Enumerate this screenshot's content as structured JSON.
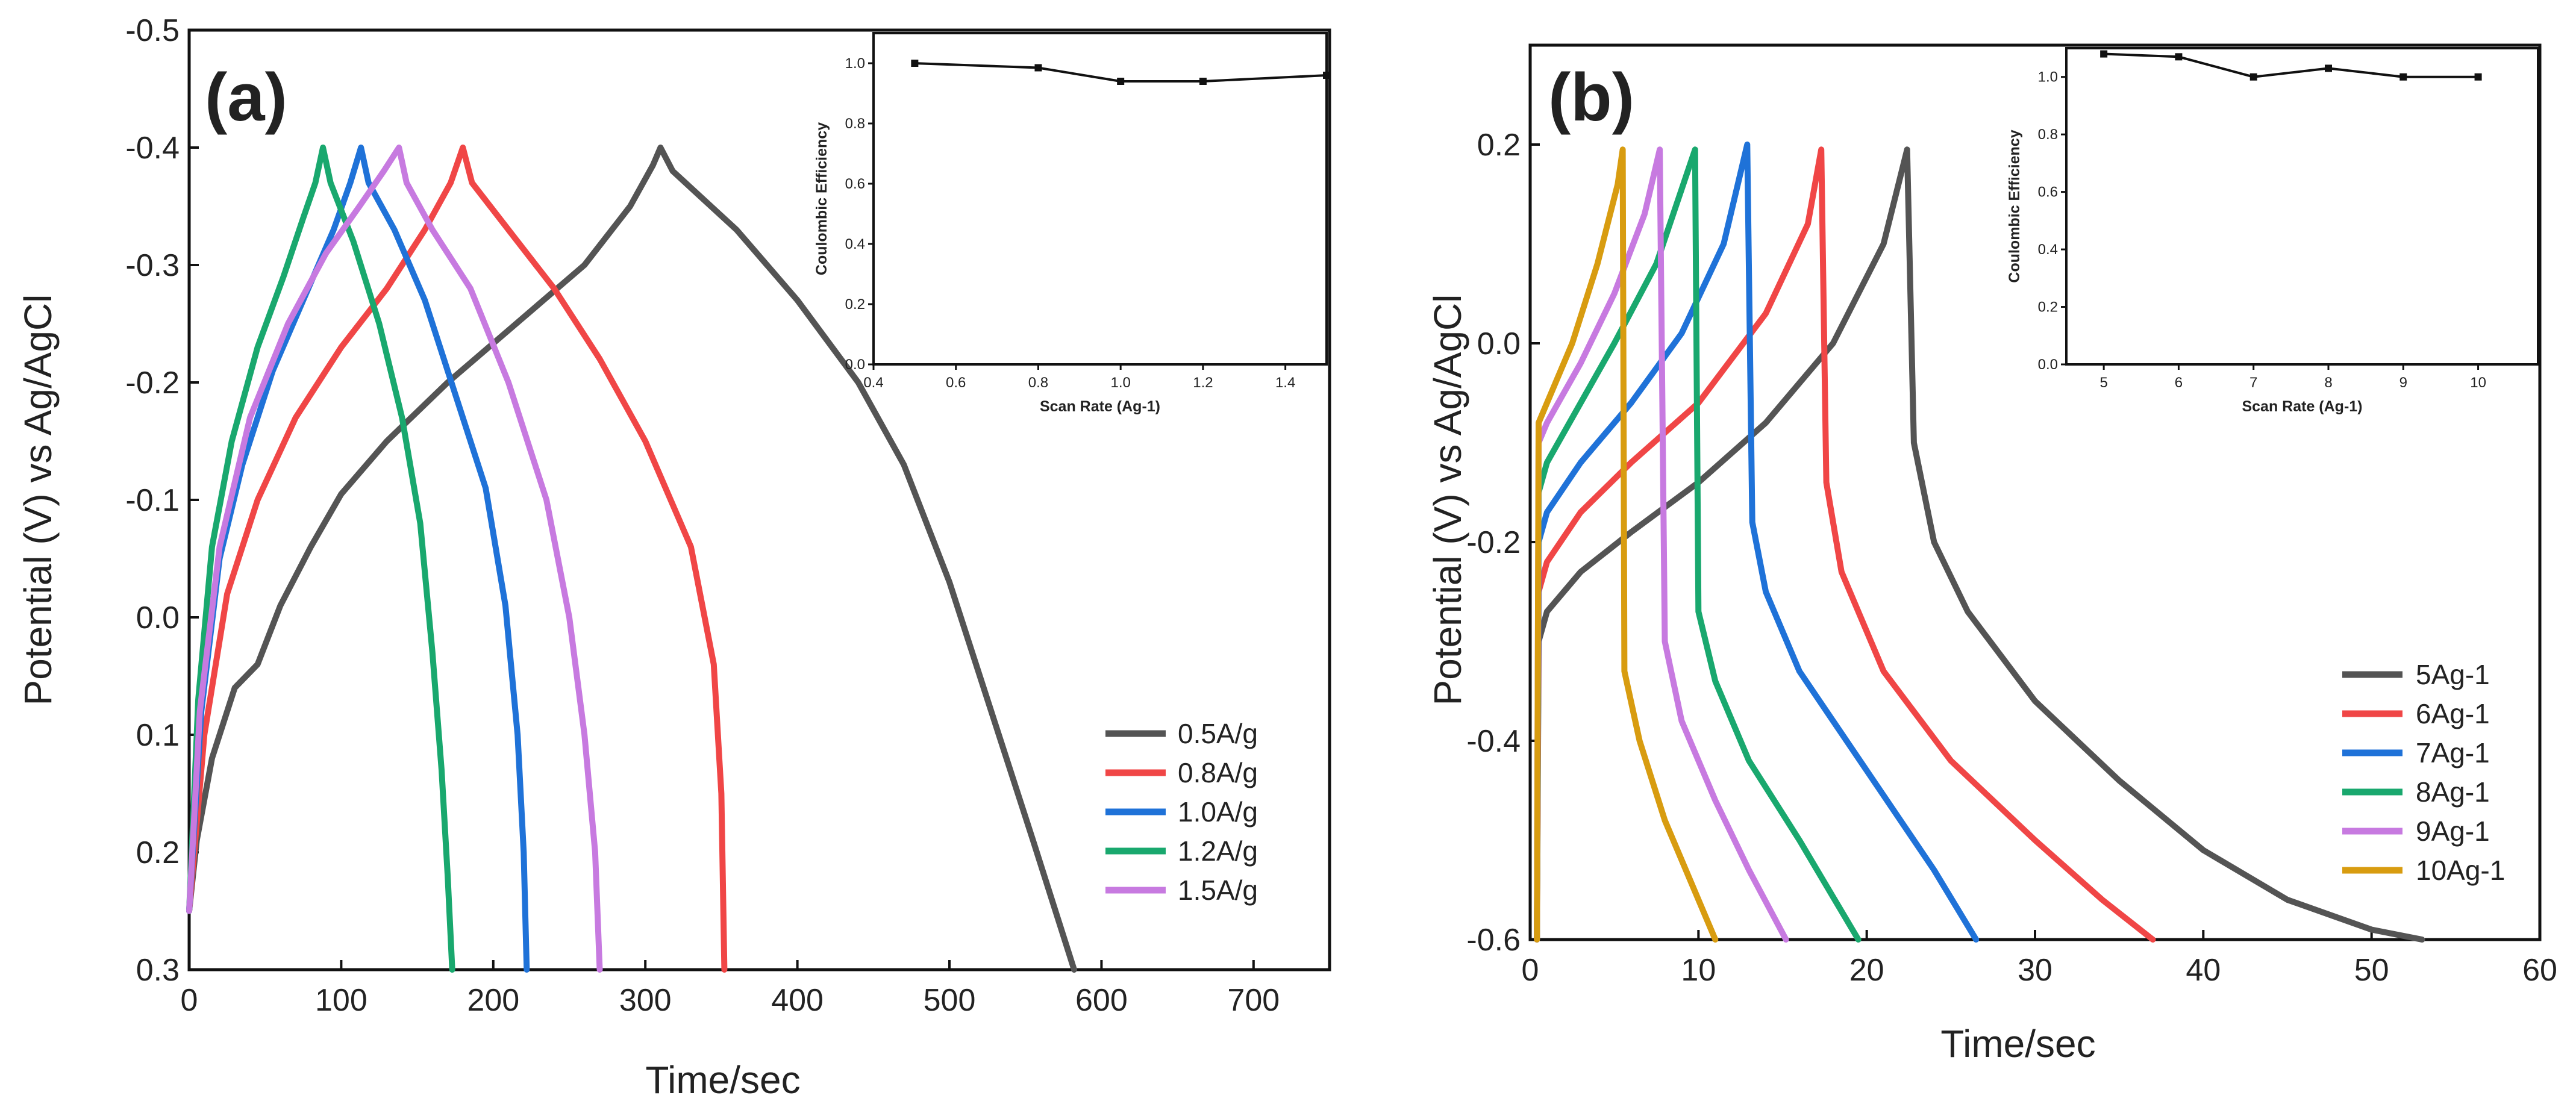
{
  "figure": {
    "colors": {
      "gray": "#545454",
      "red": "#f04646",
      "blue": "#1f72d8",
      "green": "#19a86e",
      "purple": "#c77ae0",
      "gold": "#d89c10"
    }
  },
  "chart_data": [
    {
      "type": "line",
      "panel_label": "(a)",
      "title": "",
      "xlabel": "Time/sec",
      "ylabel": "Potential (V) vs Ag/AgCl",
      "xlim": [
        0,
        750
      ],
      "ylim": [
        0.3,
        -0.5
      ],
      "x_ticks": [
        0,
        100,
        200,
        300,
        400,
        500,
        600,
        700
      ],
      "y_ticks": [
        -0.5,
        -0.4,
        -0.3,
        -0.2,
        -0.1,
        0.0,
        0.1,
        0.2,
        0.3
      ],
      "x_tick_labels": [
        "0",
        "100",
        "200",
        "300",
        "400",
        "500",
        "600",
        "700"
      ],
      "y_tick_labels": [
        "-0.5",
        "-0.4",
        "-0.3",
        "-0.2",
        "-0.1",
        "0.0",
        "0.1",
        "0.2",
        "0.3"
      ],
      "legend_position": "bottom-right",
      "series": [
        {
          "name": "0.5A/g",
          "color": "#545454",
          "points": [
            [
              0,
              0.25
            ],
            [
              5,
              0.19
            ],
            [
              15,
              0.12
            ],
            [
              30,
              0.06
            ],
            [
              45,
              0.04
            ],
            [
              60,
              -0.01
            ],
            [
              80,
              -0.06
            ],
            [
              100,
              -0.105
            ],
            [
              130,
              -0.15
            ],
            [
              170,
              -0.2
            ],
            [
              215,
              -0.25
            ],
            [
              260,
              -0.3
            ],
            [
              290,
              -0.35
            ],
            [
              305,
              -0.385
            ],
            [
              310,
              -0.4
            ],
            [
              318,
              -0.38
            ],
            [
              360,
              -0.33
            ],
            [
              400,
              -0.27
            ],
            [
              440,
              -0.2
            ],
            [
              470,
              -0.13
            ],
            [
              500,
              -0.03
            ],
            [
              530,
              0.09
            ],
            [
              555,
              0.19
            ],
            [
              582,
              0.3
            ]
          ]
        },
        {
          "name": "0.8A/g",
          "color": "#f04646",
          "points": [
            [
              0,
              0.25
            ],
            [
              10,
              0.1
            ],
            [
              25,
              -0.02
            ],
            [
              45,
              -0.1
            ],
            [
              70,
              -0.17
            ],
            [
              100,
              -0.23
            ],
            [
              130,
              -0.28
            ],
            [
              155,
              -0.33
            ],
            [
              172,
              -0.37
            ],
            [
              180,
              -0.4
            ],
            [
              186,
              -0.37
            ],
            [
              210,
              -0.33
            ],
            [
              240,
              -0.28
            ],
            [
              270,
              -0.22
            ],
            [
              300,
              -0.15
            ],
            [
              330,
              -0.06
            ],
            [
              345,
              0.04
            ],
            [
              350,
              0.15
            ],
            [
              352,
              0.3
            ]
          ]
        },
        {
          "name": "1.0A/g",
          "color": "#1f72d8",
          "points": [
            [
              0,
              0.25
            ],
            [
              8,
              0.08
            ],
            [
              20,
              -0.05
            ],
            [
              35,
              -0.13
            ],
            [
              55,
              -0.21
            ],
            [
              75,
              -0.27
            ],
            [
              95,
              -0.33
            ],
            [
              106,
              -0.37
            ],
            [
              113,
              -0.4
            ],
            [
              118,
              -0.37
            ],
            [
              135,
              -0.33
            ],
            [
              155,
              -0.27
            ],
            [
              175,
              -0.19
            ],
            [
              195,
              -0.11
            ],
            [
              208,
              -0.01
            ],
            [
              216,
              0.1
            ],
            [
              220,
              0.2
            ],
            [
              222,
              0.3
            ]
          ]
        },
        {
          "name": "1.2A/g",
          "color": "#19a86e",
          "points": [
            [
              0,
              0.25
            ],
            [
              6,
              0.07
            ],
            [
              15,
              -0.06
            ],
            [
              28,
              -0.15
            ],
            [
              45,
              -0.23
            ],
            [
              62,
              -0.29
            ],
            [
              75,
              -0.34
            ],
            [
              83,
              -0.37
            ],
            [
              88,
              -0.4
            ],
            [
              93,
              -0.37
            ],
            [
              108,
              -0.32
            ],
            [
              125,
              -0.25
            ],
            [
              140,
              -0.17
            ],
            [
              152,
              -0.08
            ],
            [
              160,
              0.03
            ],
            [
              166,
              0.13
            ],
            [
              170,
              0.22
            ],
            [
              173,
              0.3
            ]
          ]
        },
        {
          "name": "1.5A/g",
          "color": "#c77ae0",
          "points": [
            [
              0,
              0.25
            ],
            [
              7,
              0.08
            ],
            [
              20,
              -0.06
            ],
            [
              40,
              -0.17
            ],
            [
              65,
              -0.25
            ],
            [
              90,
              -0.31
            ],
            [
              112,
              -0.35
            ],
            [
              128,
              -0.38
            ],
            [
              138,
              -0.4
            ],
            [
              143,
              -0.37
            ],
            [
              160,
              -0.33
            ],
            [
              185,
              -0.28
            ],
            [
              210,
              -0.2
            ],
            [
              235,
              -0.1
            ],
            [
              250,
              0.0
            ],
            [
              260,
              0.1
            ],
            [
              267,
              0.2
            ],
            [
              270,
              0.3
            ]
          ]
        }
      ],
      "inset": {
        "type": "line",
        "xlabel": "Scan Rate (Ag-1)",
        "ylabel": "Coulombic Efficiency",
        "xlim": [
          0.4,
          1.5
        ],
        "ylim": [
          0.0,
          1.1
        ],
        "x_ticks": [
          0.4,
          0.6,
          0.8,
          1.0,
          1.2,
          1.4
        ],
        "y_ticks": [
          0.0,
          0.2,
          0.4,
          0.6,
          0.8,
          1.0
        ],
        "x_tick_labels": [
          "0.4",
          "0.6",
          "0.8",
          "1.0",
          "1.2",
          "1.4"
        ],
        "y_tick_labels": [
          "0.0",
          "0.2",
          "0.4",
          "0.6",
          "0.8",
          "1.0"
        ],
        "x": [
          0.5,
          0.8,
          1.0,
          1.2,
          1.5
        ],
        "y": [
          1.0,
          0.985,
          0.94,
          0.94,
          0.96
        ]
      }
    },
    {
      "type": "line",
      "panel_label": "(b)",
      "title": "",
      "xlabel": "Time/sec",
      "ylabel": "Potential (V) vs Ag/AgCl",
      "xlim": [
        0,
        60
      ],
      "ylim": [
        -0.6,
        0.3
      ],
      "x_ticks": [
        0,
        10,
        20,
        30,
        40,
        50,
        60
      ],
      "y_ticks": [
        -0.6,
        -0.4,
        -0.2,
        0.0,
        0.2
      ],
      "x_tick_labels": [
        "0",
        "10",
        "20",
        "30",
        "40",
        "50",
        "60"
      ],
      "y_tick_labels": [
        "-0.6",
        "-0.4",
        "-0.2",
        "0.0",
        "0.2"
      ],
      "legend_position": "bottom-right",
      "series": [
        {
          "name": "5Ag-1",
          "color": "#545454",
          "points": [
            [
              0.4,
              -0.6
            ],
            [
              0.5,
              -0.3
            ],
            [
              1,
              -0.27
            ],
            [
              3,
              -0.23
            ],
            [
              6,
              -0.19
            ],
            [
              10,
              -0.14
            ],
            [
              14,
              -0.08
            ],
            [
              18,
              0.0
            ],
            [
              21,
              0.1
            ],
            [
              22.4,
              0.195
            ],
            [
              22.8,
              -0.1
            ],
            [
              24,
              -0.2
            ],
            [
              26,
              -0.27
            ],
            [
              30,
              -0.36
            ],
            [
              35,
              -0.44
            ],
            [
              40,
              -0.51
            ],
            [
              45,
              -0.56
            ],
            [
              50,
              -0.59
            ],
            [
              53,
              -0.6
            ]
          ]
        },
        {
          "name": "6Ag-1",
          "color": "#f04646",
          "points": [
            [
              0.4,
              -0.6
            ],
            [
              0.5,
              -0.25
            ],
            [
              1,
              -0.22
            ],
            [
              3,
              -0.17
            ],
            [
              6,
              -0.12
            ],
            [
              10,
              -0.06
            ],
            [
              14,
              0.03
            ],
            [
              16.5,
              0.12
            ],
            [
              17.3,
              0.195
            ],
            [
              17.6,
              -0.14
            ],
            [
              18.5,
              -0.23
            ],
            [
              21,
              -0.33
            ],
            [
              25,
              -0.42
            ],
            [
              30,
              -0.5
            ],
            [
              34,
              -0.56
            ],
            [
              37,
              -0.6
            ]
          ]
        },
        {
          "name": "7Ag-1",
          "color": "#1f72d8",
          "points": [
            [
              0.4,
              -0.6
            ],
            [
              0.5,
              -0.2
            ],
            [
              1,
              -0.17
            ],
            [
              3,
              -0.12
            ],
            [
              6,
              -0.06
            ],
            [
              9,
              0.01
            ],
            [
              11.5,
              0.1
            ],
            [
              12.9,
              0.2
            ],
            [
              13.2,
              -0.18
            ],
            [
              14,
              -0.25
            ],
            [
              16,
              -0.33
            ],
            [
              20,
              -0.43
            ],
            [
              24,
              -0.53
            ],
            [
              26.5,
              -0.6
            ]
          ]
        },
        {
          "name": "8Ag-1",
          "color": "#19a86e",
          "points": [
            [
              0.4,
              -0.6
            ],
            [
              0.5,
              -0.15
            ],
            [
              1,
              -0.12
            ],
            [
              3,
              -0.06
            ],
            [
              5,
              0.0
            ],
            [
              7.5,
              0.08
            ],
            [
              9.8,
              0.195
            ],
            [
              10,
              -0.27
            ],
            [
              11,
              -0.34
            ],
            [
              13,
              -0.42
            ],
            [
              16,
              -0.5
            ],
            [
              19.5,
              -0.6
            ]
          ]
        },
        {
          "name": "9Ag-1",
          "color": "#c77ae0",
          "points": [
            [
              0.4,
              -0.6
            ],
            [
              0.5,
              -0.1
            ],
            [
              1,
              -0.08
            ],
            [
              3,
              -0.02
            ],
            [
              5,
              0.05
            ],
            [
              6.8,
              0.13
            ],
            [
              7.7,
              0.195
            ],
            [
              8,
              -0.3
            ],
            [
              9,
              -0.38
            ],
            [
              11,
              -0.46
            ],
            [
              13,
              -0.53
            ],
            [
              15.2,
              -0.6
            ]
          ]
        },
        {
          "name": "10Ag-1",
          "color": "#d89c10",
          "points": [
            [
              0.4,
              -0.6
            ],
            [
              0.5,
              -0.08
            ],
            [
              1,
              -0.06
            ],
            [
              2.5,
              0.0
            ],
            [
              4,
              0.08
            ],
            [
              5.2,
              0.16
            ],
            [
              5.5,
              0.195
            ],
            [
              5.6,
              -0.33
            ],
            [
              6.5,
              -0.4
            ],
            [
              8,
              -0.48
            ],
            [
              9.5,
              -0.54
            ],
            [
              11,
              -0.6
            ]
          ]
        }
      ],
      "inset": {
        "type": "line",
        "xlabel": "Scan Rate (Ag-1)",
        "ylabel": "Coulombic Efficiency",
        "xlim": [
          4.5,
          10.8
        ],
        "ylim": [
          0.0,
          1.1
        ],
        "x_ticks": [
          5,
          6,
          7,
          8,
          9,
          10
        ],
        "y_ticks": [
          0.0,
          0.2,
          0.4,
          0.6,
          0.8,
          1.0
        ],
        "x_tick_labels": [
          "5",
          "6",
          "7",
          "8",
          "9",
          "10"
        ],
        "y_tick_labels": [
          "0.0",
          "0.2",
          "0.4",
          "0.6",
          "0.8",
          "1.0"
        ],
        "x": [
          5,
          6,
          7,
          8,
          9,
          10
        ],
        "y": [
          1.08,
          1.07,
          1.0,
          1.03,
          1.0,
          1.0
        ]
      }
    }
  ]
}
